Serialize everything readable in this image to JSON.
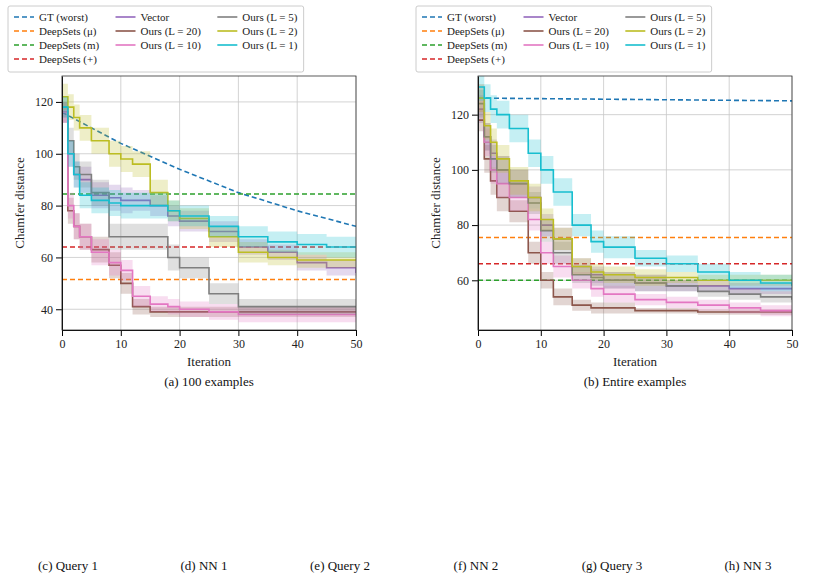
{
  "chart_data": [
    {
      "type": "line",
      "caption": "(a) 100 examples",
      "x_label": "Iteration",
      "y_label": "Chamfer distance",
      "xlim": [
        0,
        50
      ],
      "ylim": [
        32,
        130
      ],
      "xticks": [
        0,
        10,
        20,
        30,
        40,
        50
      ],
      "yticks": [
        40,
        60,
        80,
        100,
        120
      ],
      "grid": true,
      "legend": "top",
      "series": [
        {
          "name": "GT (worst)",
          "color": "#1f77b4",
          "line_style": "dashed",
          "x": [
            0,
            10,
            20,
            30,
            40,
            50
          ],
          "values": [
            116,
            104,
            94,
            85,
            78,
            72
          ]
        },
        {
          "name": "DeepSets (μ)",
          "color": "#ff7f0e",
          "line_style": "dashed",
          "x": [
            0,
            50
          ],
          "values": [
            51.5,
            51.5
          ]
        },
        {
          "name": "DeepSets (m)",
          "color": "#2ca02c",
          "line_style": "dashed",
          "x": [
            0,
            50
          ],
          "values": [
            84.5,
            84.5
          ]
        },
        {
          "name": "DeepSets (+)",
          "color": "#d62728",
          "line_style": "dashed",
          "x": [
            0,
            50
          ],
          "values": [
            64,
            64
          ]
        },
        {
          "name": "Vector",
          "color": "#9467bd",
          "line_style": "solid",
          "x": [
            0,
            1,
            2,
            3,
            5,
            8,
            10,
            12,
            15,
            18,
            20,
            25,
            30,
            35,
            40,
            45,
            50
          ],
          "values": [
            116,
            100,
            92,
            90,
            84,
            83,
            82,
            82,
            80,
            76,
            74,
            70,
            64,
            62,
            58,
            56,
            54
          ],
          "error": [
            4,
            5,
            5,
            5,
            5,
            5,
            5,
            4,
            4,
            4,
            4,
            4,
            3,
            3,
            3,
            3,
            3
          ]
        },
        {
          "name": "Ours (L = 20)",
          "color": "#8c564b",
          "line_style": "solid",
          "x": [
            0,
            1,
            2,
            3,
            5,
            8,
            10,
            12,
            15,
            18,
            20,
            25,
            30,
            35,
            40,
            45,
            50
          ],
          "values": [
            116,
            78,
            72,
            68,
            63,
            57,
            50,
            41,
            39,
            39,
            39,
            39,
            39,
            39,
            39,
            39,
            39
          ],
          "error": [
            4,
            5,
            5,
            5,
            5,
            5,
            4,
            3,
            2,
            2,
            2,
            2,
            2,
            2,
            2,
            2,
            2
          ]
        },
        {
          "name": "Ours (L = 10)",
          "color": "#e377c2",
          "line_style": "solid",
          "x": [
            0,
            1,
            2,
            3,
            5,
            8,
            10,
            12,
            15,
            18,
            20,
            25,
            30,
            35,
            40,
            45,
            50
          ],
          "values": [
            116,
            80,
            72,
            68,
            62,
            58,
            55,
            45,
            42,
            41,
            40,
            39,
            38,
            38,
            38,
            38,
            38
          ],
          "error": [
            4,
            5,
            5,
            5,
            5,
            5,
            4,
            4,
            3,
            3,
            3,
            3,
            3,
            3,
            3,
            3,
            3
          ]
        },
        {
          "name": "Ours (L = 5)",
          "color": "#7f7f7f",
          "line_style": "solid",
          "x": [
            0,
            1,
            2,
            3,
            5,
            8,
            10,
            12,
            15,
            18,
            20,
            25,
            30,
            35,
            40,
            45,
            50
          ],
          "values": [
            118,
            105,
            95,
            92,
            85,
            68,
            68,
            68,
            68,
            60,
            56,
            46,
            41,
            41,
            41,
            41,
            41
          ],
          "error": [
            4,
            5,
            5,
            5,
            5,
            5,
            5,
            5,
            5,
            5,
            4,
            4,
            3,
            3,
            3,
            3,
            3
          ]
        },
        {
          "name": "Ours (L = 2)",
          "color": "#bcbd22",
          "line_style": "solid",
          "x": [
            0,
            1,
            2,
            3,
            5,
            8,
            10,
            12,
            15,
            18,
            20,
            25,
            30,
            35,
            40,
            45,
            50
          ],
          "values": [
            122,
            118,
            114,
            110,
            105,
            100,
            98,
            96,
            85,
            78,
            75,
            68,
            62,
            60,
            59,
            59,
            59
          ],
          "error": [
            5,
            5,
            5,
            5,
            5,
            5,
            5,
            5,
            5,
            4,
            4,
            4,
            4,
            3,
            3,
            3,
            3
          ]
        },
        {
          "name": "Ours (L = 1)",
          "color": "#17becf",
          "line_style": "solid",
          "x": [
            0,
            1,
            2,
            3,
            5,
            8,
            10,
            12,
            15,
            18,
            20,
            25,
            30,
            35,
            40,
            45,
            50
          ],
          "values": [
            118,
            100,
            92,
            84,
            82,
            81,
            80,
            80,
            80,
            78,
            76,
            72,
            68,
            66,
            65,
            64,
            64
          ],
          "error": [
            4,
            5,
            5,
            5,
            5,
            5,
            5,
            5,
            5,
            4,
            4,
            4,
            4,
            4,
            4,
            4,
            4
          ]
        }
      ]
    },
    {
      "type": "line",
      "caption": "(b) Entire examples",
      "x_label": "Iteration",
      "y_label": "Chamfer distance",
      "xlim": [
        0,
        50
      ],
      "ylim": [
        42,
        134
      ],
      "xticks": [
        0,
        10,
        20,
        30,
        40,
        50
      ],
      "yticks": [
        60,
        80,
        100,
        120
      ],
      "grid": true,
      "legend": "top",
      "series": [
        {
          "name": "GT (worst)",
          "color": "#1f77b4",
          "line_style": "dashed",
          "x": [
            0,
            25,
            50
          ],
          "values": [
            126,
            125.5,
            125
          ]
        },
        {
          "name": "DeepSets (μ)",
          "color": "#ff7f0e",
          "line_style": "dashed",
          "x": [
            0,
            50
          ],
          "values": [
            75.5,
            75.5
          ]
        },
        {
          "name": "DeepSets (m)",
          "color": "#2ca02c",
          "line_style": "dashed",
          "x": [
            0,
            50
          ],
          "values": [
            60,
            60
          ]
        },
        {
          "name": "DeepSets (+)",
          "color": "#d62728",
          "line_style": "dashed",
          "x": [
            0,
            50
          ],
          "values": [
            66,
            66
          ]
        },
        {
          "name": "Vector",
          "color": "#9467bd",
          "line_style": "solid",
          "x": [
            0,
            1,
            2,
            3,
            5,
            8,
            10,
            12,
            15,
            18,
            20,
            25,
            30,
            35,
            40,
            45,
            50
          ],
          "values": [
            122,
            112,
            106,
            100,
            95,
            90,
            80,
            75,
            65,
            62,
            60,
            59,
            58,
            58,
            57,
            57,
            57
          ],
          "error": [
            5,
            5,
            5,
            5,
            5,
            4,
            4,
            4,
            3,
            3,
            3,
            3,
            2,
            2,
            2,
            2,
            2
          ]
        },
        {
          "name": "Ours (L = 20)",
          "color": "#8c564b",
          "line_style": "solid",
          "x": [
            0,
            1,
            2,
            3,
            5,
            8,
            10,
            12,
            15,
            18,
            20,
            25,
            30,
            35,
            40,
            45,
            50
          ],
          "values": [
            118,
            104,
            96,
            90,
            85,
            70,
            60,
            54,
            51,
            50,
            50,
            49,
            49,
            48.5,
            48.5,
            48.5,
            48.5
          ],
          "error": [
            4,
            5,
            5,
            5,
            4,
            4,
            3,
            3,
            2,
            2,
            2,
            1,
            1,
            1,
            1,
            1,
            1
          ]
        },
        {
          "name": "Ours (L = 10)",
          "color": "#e377c2",
          "line_style": "solid",
          "x": [
            0,
            1,
            2,
            3,
            5,
            8,
            10,
            12,
            15,
            18,
            20,
            25,
            30,
            35,
            40,
            45,
            50
          ],
          "values": [
            126,
            110,
            100,
            95,
            90,
            82,
            70,
            65,
            60,
            57,
            55,
            53,
            52,
            51,
            50,
            49,
            49
          ],
          "error": [
            5,
            5,
            5,
            5,
            5,
            4,
            4,
            4,
            3,
            3,
            3,
            2,
            2,
            2,
            2,
            2,
            2
          ]
        },
        {
          "name": "Ours (L = 5)",
          "color": "#7f7f7f",
          "line_style": "solid",
          "x": [
            0,
            1,
            2,
            3,
            5,
            8,
            10,
            12,
            15,
            18,
            20,
            25,
            30,
            35,
            40,
            45,
            50
          ],
          "values": [
            124,
            112,
            104,
            100,
            95,
            88,
            78,
            70,
            62,
            61,
            60,
            59,
            58,
            56,
            55,
            54,
            53
          ],
          "error": [
            5,
            5,
            5,
            5,
            5,
            4,
            4,
            4,
            3,
            3,
            3,
            3,
            2,
            2,
            2,
            2,
            2
          ]
        },
        {
          "name": "Ours (L = 2)",
          "color": "#bcbd22",
          "line_style": "solid",
          "x": [
            0,
            1,
            2,
            3,
            5,
            8,
            10,
            12,
            15,
            18,
            20,
            25,
            30,
            35,
            40,
            45,
            50
          ],
          "values": [
            126,
            116,
            110,
            104,
            96,
            90,
            82,
            75,
            65,
            63,
            62,
            61,
            61,
            60,
            60,
            60,
            60
          ],
          "error": [
            5,
            5,
            5,
            5,
            5,
            5,
            4,
            4,
            3,
            3,
            3,
            3,
            2,
            2,
            2,
            2,
            2
          ]
        },
        {
          "name": "Ours (L = 1)",
          "color": "#17becf",
          "line_style": "solid",
          "x": [
            0,
            1,
            2,
            3,
            5,
            8,
            10,
            12,
            15,
            18,
            20,
            25,
            30,
            35,
            40,
            45,
            50
          ],
          "values": [
            130,
            126,
            122,
            120,
            115,
            106,
            100,
            92,
            80,
            74,
            72,
            68,
            66,
            63,
            60,
            59,
            58
          ],
          "error": [
            5,
            5,
            5,
            5,
            5,
            5,
            5,
            5,
            4,
            4,
            4,
            3,
            3,
            3,
            3,
            3,
            3
          ]
        }
      ]
    }
  ],
  "subfigures": [
    {
      "caption": "(c) Query 1"
    },
    {
      "caption": "(d) NN 1"
    },
    {
      "caption": "(e) Query 2"
    },
    {
      "caption": "(f) NN 2"
    },
    {
      "caption": "(g) Query 3"
    },
    {
      "caption": "(h) NN 3"
    }
  ]
}
